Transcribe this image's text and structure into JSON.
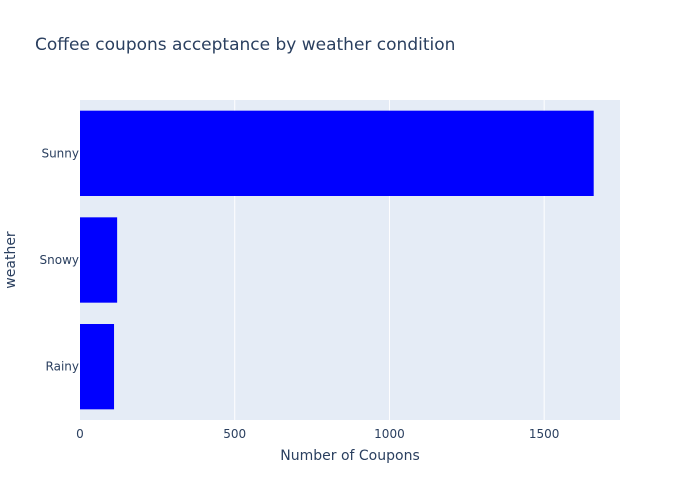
{
  "chart_data": {
    "type": "bar",
    "orientation": "horizontal",
    "title": "Coffee coupons acceptance by weather condition",
    "xlabel": "Number of Coupons",
    "ylabel": "weather",
    "categories": [
      "Sunny",
      "Snowy",
      "Rainy"
    ],
    "values": [
      1660,
      120,
      110
    ],
    "xlim": [
      0,
      1745
    ],
    "xticks": [
      0,
      500,
      1000,
      1500
    ],
    "grid": true,
    "legend": "none"
  },
  "colors": {
    "bar": "#0000ff",
    "plot_background": "#e5ecf6",
    "gridline": "#ffffff",
    "text": "#2a3f5f",
    "paper": "#ffffff"
  }
}
